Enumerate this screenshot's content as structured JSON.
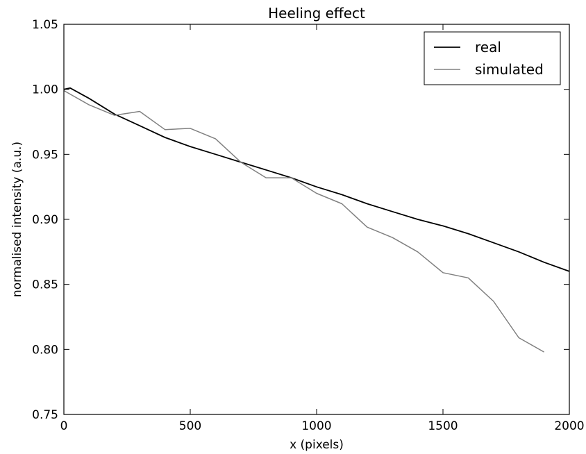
{
  "chart_data": {
    "type": "line",
    "title": "Heeling effect",
    "xlabel": "x (pixels)",
    "ylabel": "normalised intensity (a.u.)",
    "xlim": [
      0,
      2000
    ],
    "ylim": [
      0.75,
      1.05
    ],
    "xticks": [
      0,
      500,
      1000,
      1500,
      2000
    ],
    "xtick_labels": [
      "0",
      "500",
      "1000",
      "1500",
      "2000"
    ],
    "yticks": [
      0.75,
      0.8,
      0.85,
      0.9,
      0.95,
      1.0,
      1.05
    ],
    "ytick_labels": [
      "0.75",
      "0.80",
      "0.85",
      "0.90",
      "0.95",
      "1.00",
      "1.05"
    ],
    "grid": false,
    "legend_position": "top-right",
    "series": [
      {
        "name": "real",
        "color": "#000000",
        "x": [
          0,
          25,
          100,
          200,
          300,
          400,
          500,
          600,
          700,
          800,
          900,
          1000,
          1100,
          1200,
          1300,
          1400,
          1500,
          1600,
          1700,
          1800,
          1900,
          2000
        ],
        "y": [
          1.0,
          1.001,
          0.993,
          0.981,
          0.972,
          0.963,
          0.956,
          0.95,
          0.944,
          0.938,
          0.932,
          0.925,
          0.919,
          0.912,
          0.906,
          0.9,
          0.895,
          0.889,
          0.882,
          0.875,
          0.867,
          0.86
        ]
      },
      {
        "name": "simulated",
        "color": "#808080",
        "x": [
          0,
          100,
          200,
          300,
          400,
          500,
          600,
          700,
          800,
          900,
          1000,
          1100,
          1200,
          1300,
          1400,
          1500,
          1600,
          1700,
          1800,
          1900
        ],
        "y": [
          0.999,
          0.988,
          0.98,
          0.983,
          0.969,
          0.97,
          0.962,
          0.944,
          0.932,
          0.932,
          0.92,
          0.912,
          0.894,
          0.886,
          0.875,
          0.859,
          0.855,
          0.837,
          0.809,
          0.798
        ]
      }
    ]
  }
}
